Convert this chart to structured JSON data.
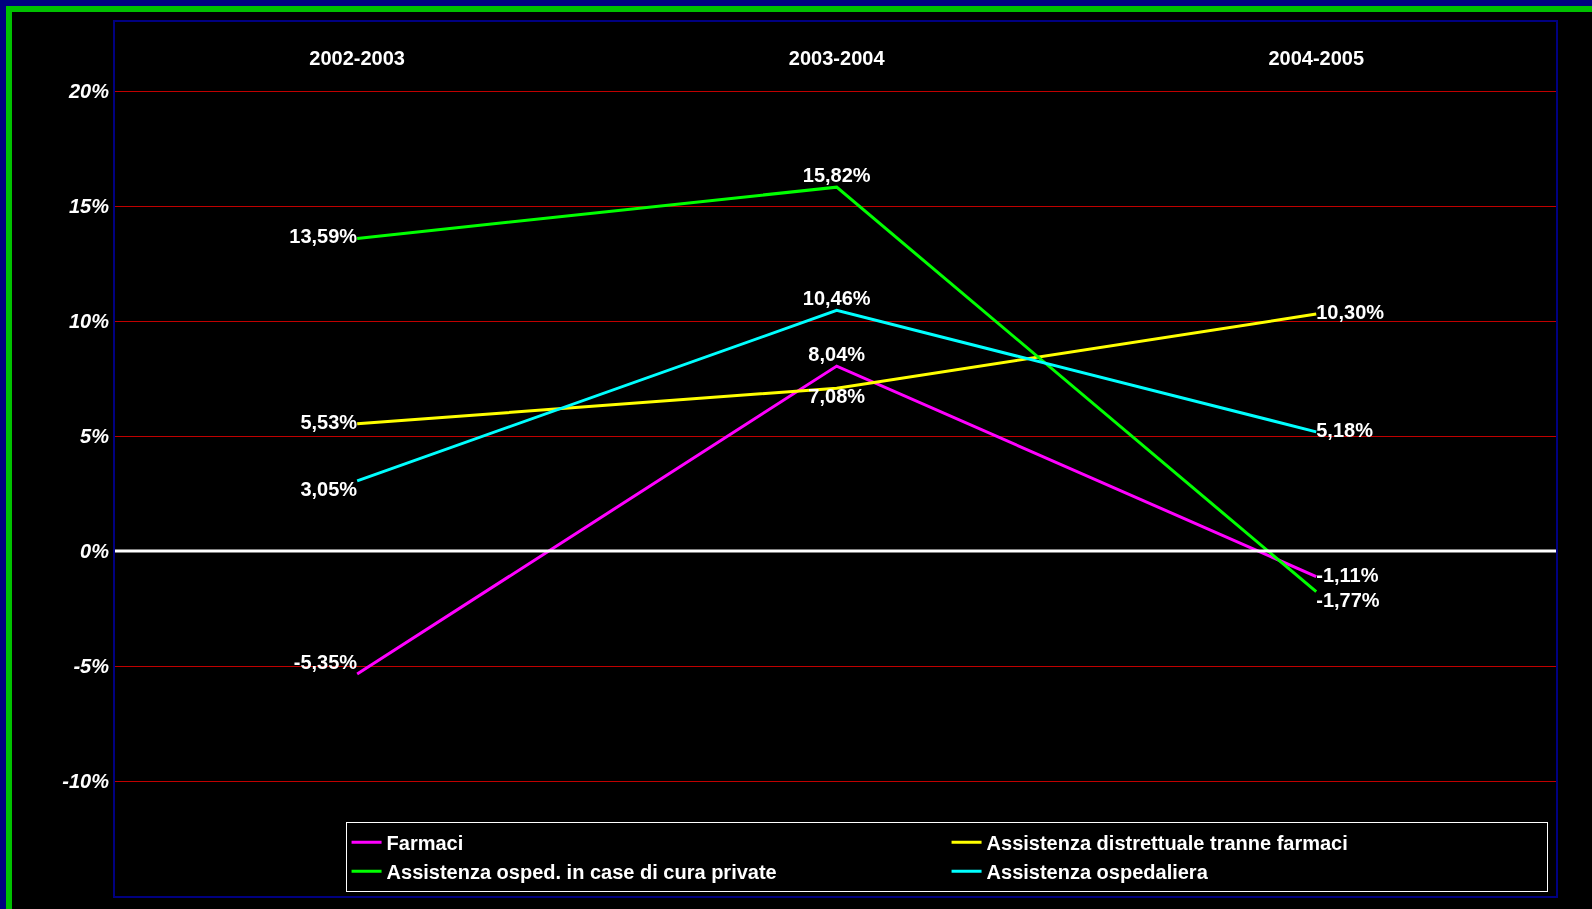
{
  "chart_data": {
    "type": "line",
    "categories": [
      "2002-2003",
      "2003-2004",
      "2004-2005"
    ],
    "series": [
      {
        "name": "Farmaci",
        "color": "#ff00ff",
        "values": [
          -5.35,
          8.04,
          -1.11
        ],
        "value_labels": [
          "-5,35%",
          "8,04%",
          "-1,11%"
        ]
      },
      {
        "name": "Assistenza distrettuale tranne farmaci",
        "color": "#ffff00",
        "values": [
          5.53,
          7.08,
          10.3
        ],
        "value_labels": [
          "5,53%",
          "7,08%",
          "10,30%"
        ]
      },
      {
        "name": "Assistenza osped. in case di cura private",
        "color": "#00ff00",
        "values": [
          13.59,
          15.82,
          -1.77
        ],
        "value_labels": [
          "13,59%",
          "15,82%",
          "-1,77%"
        ]
      },
      {
        "name": "Assistenza ospedaliera",
        "color": "#00ffff",
        "values": [
          3.05,
          10.46,
          5.18
        ],
        "value_labels": [
          "3,05%",
          "10,46%",
          "5,18%"
        ]
      }
    ],
    "ylim": [
      -15,
      23
    ],
    "yticks": [
      {
        "value": -10,
        "label": "-10%"
      },
      {
        "value": -5,
        "label": "-5%"
      },
      {
        "value": 0,
        "label": "0%"
      },
      {
        "value": 5,
        "label": "5%"
      },
      {
        "value": 10,
        "label": "10%"
      },
      {
        "value": 15,
        "label": "15%"
      },
      {
        "value": 20,
        "label": "20%"
      }
    ],
    "grid": "y",
    "ref_lines": [
      {
        "axis": "y",
        "value": 0,
        "color": "#ffffff"
      }
    ],
    "legend": "bottom",
    "marker": "none",
    "line_style": "solid"
  }
}
